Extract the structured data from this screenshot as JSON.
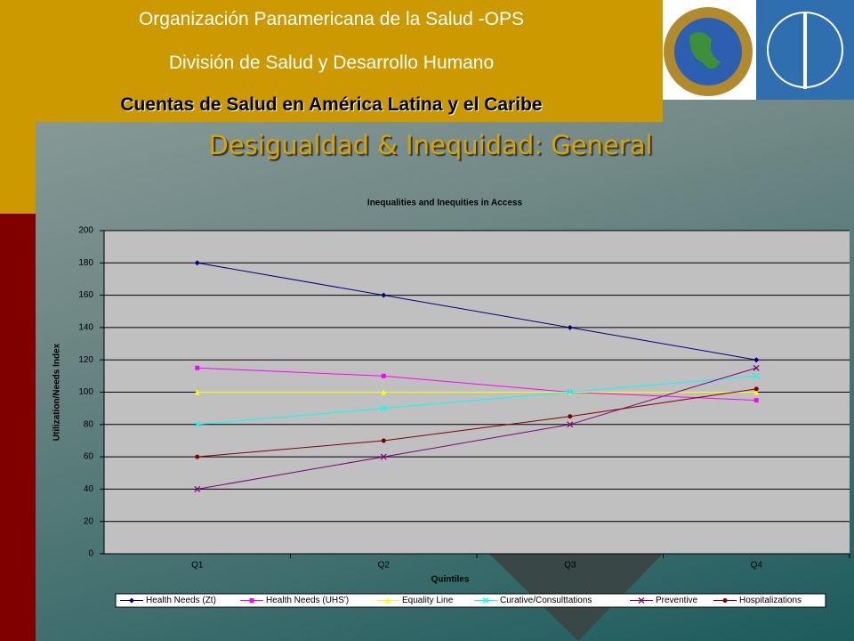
{
  "header": {
    "org": "Organización Panamericana de la Salud -OPS",
    "division": "División de Salud y Desarrollo Humano",
    "program": "Cuentas de Salud en América Latina y el Caribe"
  },
  "slide_title": "Desigualdad & Inequidad: General",
  "chart_data": {
    "type": "line",
    "title": "Inequalities and Inequities in Access",
    "x_label": "Quintiles",
    "y_label": "Utilization/Needs Index",
    "categories": [
      "Q1",
      "Q2",
      "Q3",
      "Q4"
    ],
    "ylim": [
      0,
      200
    ],
    "yticks": [
      0,
      20,
      40,
      60,
      80,
      100,
      120,
      140,
      160,
      180,
      200
    ],
    "grid": true,
    "series": [
      {
        "name": "Health Needs (Zt)",
        "color": "#000080",
        "values": [
          180,
          160,
          140,
          120
        ]
      },
      {
        "name": "Health Needs (UHS')",
        "color": "#ff00ff",
        "values": [
          115,
          110,
          100,
          95
        ]
      },
      {
        "name": "Equality Line",
        "color": "#ffff00",
        "values": [
          100,
          100,
          100,
          100
        ]
      },
      {
        "name": "Curative/Consulttations",
        "color": "#00ffff",
        "values": [
          80,
          90,
          100,
          110
        ]
      },
      {
        "name": "Preventive",
        "color": "#800080",
        "values": [
          40,
          60,
          80,
          115
        ]
      },
      {
        "name": "Hospitalizations",
        "color": "#800000",
        "values": [
          60,
          70,
          85,
          102
        ]
      }
    ]
  }
}
